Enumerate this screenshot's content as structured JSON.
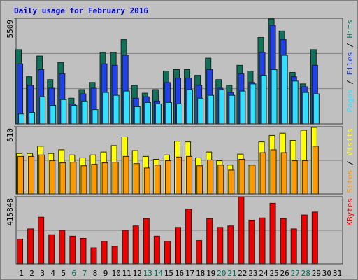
{
  "chart_data": [
    {
      "type": "bar",
      "title": "Daily usage for February 2016",
      "categories": [
        "1",
        "2",
        "3",
        "4",
        "5",
        "6",
        "7",
        "8",
        "9",
        "10",
        "11",
        "12",
        "13",
        "14",
        "15",
        "16",
        "17",
        "18",
        "19",
        "20",
        "21",
        "22",
        "23",
        "24",
        "25",
        "26",
        "27",
        "28",
        "29",
        "30",
        "31"
      ],
      "category_colors": [
        "#000000",
        "#000000",
        "#000000",
        "#000000",
        "#000000",
        "#006a50",
        "#006a50",
        "#000000",
        "#000000",
        "#000000",
        "#000000",
        "#000000",
        "#006a50",
        "#006a50",
        "#000000",
        "#000000",
        "#000000",
        "#000000",
        "#000000",
        "#006a50",
        "#006a50",
        "#000000",
        "#000000",
        "#000000",
        "#000000",
        "#000000",
        "#006a50",
        "#006a50",
        "#000000",
        "#000000",
        "#000000"
      ],
      "legend_separator": " / ",
      "ylim": [
        0,
        5509
      ],
      "yticks": [
        5509
      ],
      "series": [
        {
          "name": "Hits",
          "color": "#107058",
          "values": [
            3871,
            2457,
            3536,
            2308,
            3201,
            1340,
            1787,
            2159,
            3722,
            3722,
            4392,
            2010,
            1601,
            1787,
            2755,
            2829,
            2829,
            2531,
            3424,
            2308,
            2010,
            3052,
            2755,
            4504,
            5472,
            4839,
            2680,
            2084,
            3871,
            null,
            null
          ]
        },
        {
          "name": "Files",
          "color": "#2040e8",
          "values": [
            3127,
            2010,
            2829,
            1861,
            2606,
            1042,
            1563,
            1861,
            3127,
            3052,
            3573,
            1340,
            1414,
            1191,
            2159,
            2382,
            2382,
            2010,
            2829,
            1861,
            1638,
            2606,
            2159,
            3722,
            5137,
            4392,
            2457,
            1936,
            3052,
            null,
            null
          ]
        },
        {
          "name": "Pages",
          "color": "#30e0ff",
          "values": [
            521,
            596,
            1414,
            968,
            1266,
            968,
            1191,
            744,
            1638,
            1489,
            1712,
            893,
            1117,
            1042,
            1117,
            1042,
            1787,
            1340,
            1489,
            1787,
            1489,
            1712,
            2084,
            2531,
            2829,
            3573,
            2233,
            1638,
            1563,
            null,
            null
          ]
        }
      ]
    },
    {
      "type": "bar",
      "ylim": [
        0,
        510
      ],
      "yticks": [
        510
      ],
      "series": [
        {
          "name": "Visits",
          "color": "#ffff00",
          "values": [
            307,
            307,
            362,
            307,
            335,
            296,
            274,
            296,
            318,
            367,
            433,
            329,
            285,
            263,
            296,
            400,
            395,
            274,
            318,
            252,
            219,
            302,
            219,
            395,
            444,
            461,
            406,
            483,
            505,
            null,
            null
          ]
        },
        {
          "name": "Sites",
          "color": "#ff9900",
          "values": [
            285,
            285,
            296,
            252,
            236,
            241,
            214,
            225,
            236,
            241,
            285,
            230,
            197,
            219,
            252,
            280,
            285,
            214,
            258,
            219,
            181,
            263,
            219,
            313,
            335,
            313,
            252,
            252,
            362,
            null,
            null
          ]
        }
      ]
    },
    {
      "type": "bar",
      "ylim": [
        0,
        415848
      ],
      "yticks": [
        415848
      ],
      "series": [
        {
          "name": "KBytes",
          "color": "#ee0000",
          "values": [
            153683,
            216963,
            289284,
            180804,
            207925,
            171764,
            158203,
            99442,
            140122,
            108482,
            207925,
            235044,
            280244,
            171764,
            140122,
            226004,
            339007,
            144643,
            280244,
            226004,
            235044,
            415848,
            271205,
            284764,
            375168,
            280244,
            216963,
            302845,
            320926,
            null,
            null
          ]
        }
      ]
    }
  ]
}
